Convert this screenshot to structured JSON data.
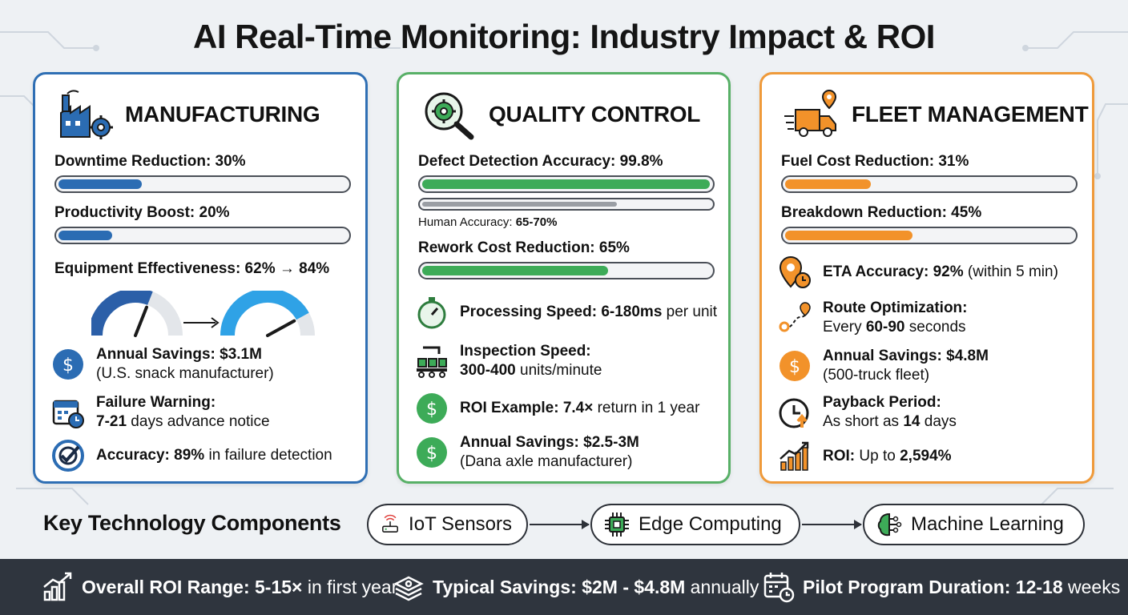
{
  "title": "AI Real-Time Monitoring: Industry Impact & ROI",
  "colors": {
    "blue": "#2b6cb3",
    "green": "#3dab58",
    "orange": "#f2922a",
    "footer": "#2f353e"
  },
  "manufacturing": {
    "title": "MANUFACTURING",
    "icon": "factory-gear-icon",
    "metrics": [
      {
        "label": "Downtime Reduction: 30%",
        "fraction": 0.3
      },
      {
        "label": "Productivity Boost: 20%",
        "fraction": 0.2
      }
    ],
    "oee_label": "Equipment Effectiveness: 62% → 84%",
    "gauge_from": 0.62,
    "gauge_to": 0.84,
    "rows": [
      {
        "icon": "dollar-icon",
        "bold": "Annual Savings: $3.1M",
        "rest": "(U.S. snack manufacturer)"
      },
      {
        "icon": "calendar-clock-icon",
        "bold": "Failure Warning:",
        "bold2": "7-21",
        "rest": " days advance notice"
      },
      {
        "icon": "target-check-icon",
        "bold": "Accuracy: 89%",
        "rest": " in failure detection"
      }
    ]
  },
  "quality": {
    "title": "QUALITY CONTROL",
    "icon": "gear-magnifier-icon",
    "defect_label": "Defect Detection Accuracy: 99.8%",
    "defect_fraction": 0.998,
    "human_note_prefix": "Human Accuracy: ",
    "human_note_value": "65-70%",
    "human_fraction": 0.68,
    "rework_label": "Rework Cost Reduction: 65%",
    "rework_fraction": 0.65,
    "rows": [
      {
        "icon": "stopwatch-icon",
        "bold": "Processing Speed: 6-180ms",
        "rest": " per unit"
      },
      {
        "icon": "conveyor-icon",
        "bold": "Inspection Speed:",
        "bold2": "300-400",
        "rest": " units/minute"
      },
      {
        "icon": "dollar-icon",
        "bold": "ROI Example: 7.4×",
        "rest": " return in 1 year"
      },
      {
        "icon": "dollar-icon",
        "bold": "Annual Savings: $2.5-3M",
        "rest": "(Dana axle manufacturer)"
      }
    ]
  },
  "fleet": {
    "title": "FLEET MANAGEMENT",
    "icon": "truck-pin-icon",
    "metrics": [
      {
        "label": "Fuel Cost Reduction: 31%",
        "fraction": 0.31
      },
      {
        "label": "Breakdown Reduction: 45%",
        "fraction": 0.45
      }
    ],
    "rows": [
      {
        "icon": "map-pin-clock-icon",
        "bold": "ETA Accuracy: 92%",
        "rest": " (within 5 min)"
      },
      {
        "icon": "route-icon",
        "bold": "Route Optimization:",
        "pre": "Every ",
        "bold2": "60-90",
        "rest": " seconds"
      },
      {
        "icon": "dollar-icon",
        "bold": "Annual Savings: $4.8M",
        "rest": "(500-truck fleet)"
      },
      {
        "icon": "payback-clock-icon",
        "bold": "Payback Period:",
        "pre": "As short as ",
        "bold2": "14",
        "rest": " days"
      },
      {
        "icon": "growth-chart-icon",
        "bold": "ROI:",
        "pre": " Up to ",
        "bold2": "2,594%",
        "rest": ""
      }
    ]
  },
  "tech": {
    "label": "Key Technology Components",
    "items": [
      {
        "icon": "iot-router-icon",
        "label": "IoT Sensors"
      },
      {
        "icon": "chip-icon",
        "label": "Edge Computing"
      },
      {
        "icon": "brain-circuit-icon",
        "label": "Machine Learning"
      }
    ]
  },
  "footer": [
    {
      "icon": "growth-chart-icon",
      "bold": "Overall ROI Range: 5-15×",
      "rest": " in first year"
    },
    {
      "icon": "money-stack-icon",
      "bold": "Typical Savings: $2M - $4.8M",
      "rest": " annually"
    },
    {
      "icon": "calendar-clock-icon",
      "bold": "Pilot Program Duration: 12-18",
      "rest": " weeks"
    }
  ]
}
